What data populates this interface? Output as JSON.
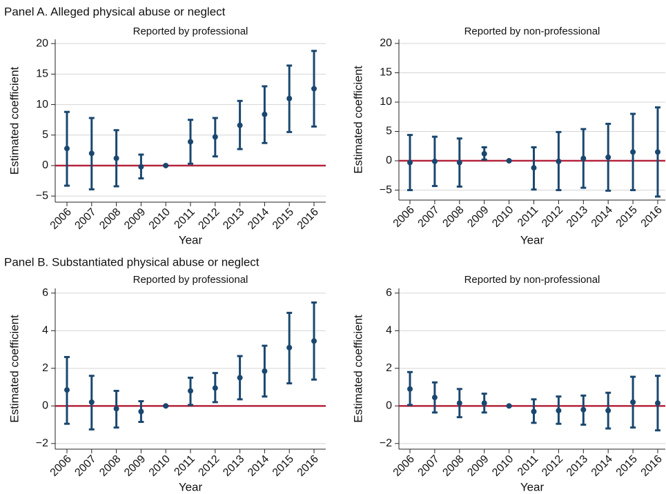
{
  "panel_titles": [
    "Panel A. Alleged physical abuse or neglect",
    "Panel B. Substantiated physical abuse or neglect"
  ],
  "chart_data": [
    {
      "type": "errorbar",
      "title": "Reported by professional",
      "xlabel": "Year",
      "ylabel": "Estimated coefficient",
      "color": "#1a476f",
      "categories": [
        "2006",
        "2007",
        "2008",
        "2009",
        "2010",
        "2011",
        "2012",
        "2013",
        "2014",
        "2015",
        "2016"
      ],
      "values": [
        2.8,
        2.0,
        1.2,
        -0.2,
        0,
        3.9,
        4.7,
        6.6,
        8.4,
        11.0,
        12.6
      ],
      "lower": [
        -3.3,
        -3.9,
        -3.4,
        -2.1,
        0,
        0.3,
        1.5,
        2.7,
        3.7,
        5.5,
        6.4
      ],
      "upper": [
        8.8,
        7.8,
        5.8,
        1.8,
        0,
        7.5,
        7.8,
        10.6,
        13.0,
        16.4,
        18.8
      ],
      "ylim": [
        -6,
        20.7
      ],
      "yticks": [
        {
          "value": -5,
          "label": "−5"
        },
        0,
        5,
        10,
        15,
        20
      ],
      "grid": true,
      "reference_line": {
        "value": 0,
        "color": "#b5223b"
      }
    },
    {
      "type": "errorbar",
      "title": "Reported by non-professional",
      "xlabel": "Year",
      "ylabel": "Estimated coefficient",
      "color": "#1a476f",
      "categories": [
        "2006",
        "2007",
        "2008",
        "2009",
        "2010",
        "2011",
        "2012",
        "2013",
        "2014",
        "2015",
        "2016"
      ],
      "values": [
        -0.3,
        -0.1,
        -0.3,
        1.2,
        0,
        -1.2,
        -0.1,
        0.4,
        0.6,
        1.5,
        1.5
      ],
      "lower": [
        -5.0,
        -4.3,
        -4.4,
        0.2,
        0,
        -4.9,
        -5.0,
        -4.6,
        -5.1,
        -5.0,
        -6.1
      ],
      "upper": [
        4.4,
        4.1,
        3.8,
        2.3,
        0,
        2.3,
        4.9,
        5.4,
        6.3,
        8.0,
        9.1
      ],
      "ylim": [
        -6.7,
        20.7
      ],
      "yticks": [
        {
          "value": -5,
          "label": "−5"
        },
        0,
        5,
        10,
        15,
        20
      ],
      "grid": true,
      "reference_line": {
        "value": 0,
        "color": "#b5223b"
      }
    },
    {
      "type": "errorbar",
      "title": "Reported by professional",
      "xlabel": "Year",
      "ylabel": "Estimated coefficient",
      "color": "#1a476f",
      "categories": [
        "2006",
        "2007",
        "2008",
        "2009",
        "2010",
        "2011",
        "2012",
        "2013",
        "2014",
        "2015",
        "2016"
      ],
      "values": [
        0.85,
        0.2,
        -0.15,
        -0.3,
        0,
        0.8,
        0.95,
        1.5,
        1.85,
        3.1,
        3.45
      ],
      "lower": [
        -0.95,
        -1.25,
        -1.15,
        -0.85,
        0,
        0.05,
        0.2,
        0.35,
        0.5,
        1.2,
        1.4
      ],
      "upper": [
        2.6,
        1.6,
        0.8,
        0.25,
        0,
        1.5,
        1.75,
        2.65,
        3.2,
        4.95,
        5.5
      ],
      "ylim": [
        -2.3,
        6.25
      ],
      "yticks": [
        {
          "value": -2,
          "label": "−2"
        },
        0,
        2,
        4,
        6
      ],
      "grid": true,
      "reference_line": {
        "value": 0,
        "color": "#b5223b"
      }
    },
    {
      "type": "errorbar",
      "title": "Reported by non-professional",
      "xlabel": "Year",
      "ylabel": "Estimated coefficient",
      "color": "#1a476f",
      "categories": [
        "2006",
        "2007",
        "2008",
        "2009",
        "2010",
        "2011",
        "2012",
        "2013",
        "2014",
        "2015",
        "2016"
      ],
      "values": [
        0.9,
        0.45,
        0.15,
        0.15,
        0,
        -0.3,
        -0.25,
        -0.2,
        -0.25,
        0.2,
        0.15
      ],
      "lower": [
        0.05,
        -0.35,
        -0.6,
        -0.35,
        0,
        -0.9,
        -0.95,
        -1.0,
        -1.2,
        -1.15,
        -1.3
      ],
      "upper": [
        1.8,
        1.25,
        0.9,
        0.65,
        0,
        0.35,
        0.5,
        0.55,
        0.7,
        1.55,
        1.6
      ],
      "ylim": [
        -2.3,
        6.25
      ],
      "yticks": [
        {
          "value": -2,
          "label": "−2"
        },
        0,
        2,
        4,
        6
      ],
      "grid": true,
      "reference_line": {
        "value": 0,
        "color": "#b5223b"
      }
    }
  ]
}
